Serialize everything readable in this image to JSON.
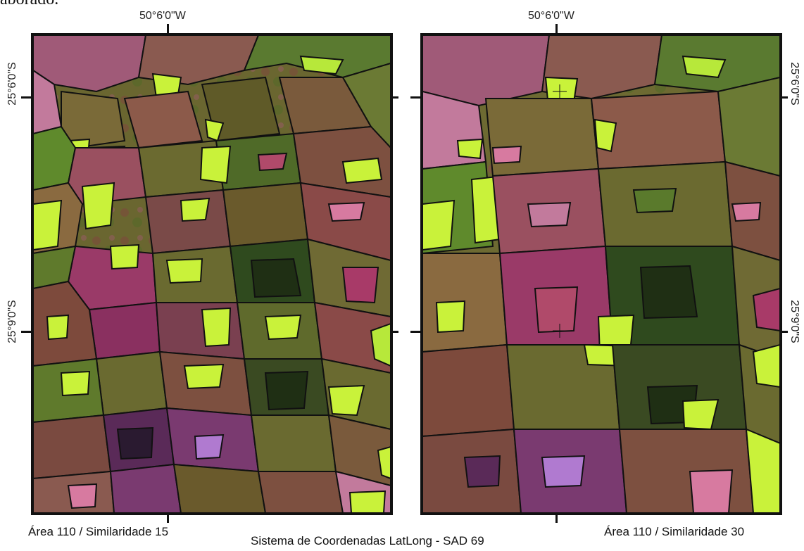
{
  "caption_fragment": "aborado.",
  "panels": [
    {
      "top_label": "50°6'0\"W",
      "left_labels": [
        "25°6'0\"S",
        "25°9'0\"S"
      ],
      "caption": "Área 110 / Similaridade 15",
      "similarity": 15
    },
    {
      "top_label": "50°6'0\"W",
      "right_labels": [
        "25°6'0\"S",
        "25°9'0\"S"
      ],
      "caption": "Área 110 / Similaridade 30",
      "similarity": 30
    }
  ],
  "coordinate_system": "Sistema de Coordenadas LatLong - SAD 69",
  "colors": {
    "bright_green": "#c9f23a",
    "olive": "#6d6a2e",
    "magenta": "#a8326a",
    "pink": "#d77aa0",
    "dark_green": "#2f4a1e",
    "brown_red": "#8a4a3a",
    "segment_outline": "#111111"
  }
}
